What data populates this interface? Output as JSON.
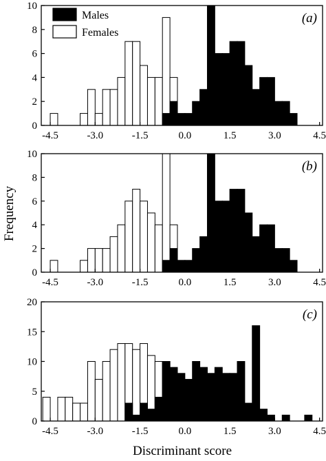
{
  "chart_data": {
    "type": "bar",
    "bin_width": 0.25,
    "x_ticks": [
      "-4.5",
      "-3.0",
      "-1.5",
      "0.0",
      "1.5",
      "3.0",
      "4.5"
    ],
    "xlabel": "Discriminant score",
    "ylabel": "Frequency",
    "legend": {
      "position": "top-left",
      "entries": [
        {
          "name": "Males",
          "fill": "#000000"
        },
        {
          "name": "Females",
          "fill": "#ffffff"
        }
      ]
    },
    "colors": {
      "males": "#000000",
      "females": "#ffffff",
      "edge": "#000000"
    },
    "panels": [
      {
        "label": "(a)",
        "ylim": [
          0,
          10
        ],
        "y_ticks": [
          "0",
          "2",
          "4",
          "6",
          "8",
          "10"
        ],
        "females": [
          {
            "x": -4.375,
            "y": 1
          },
          {
            "x": -3.375,
            "y": 1
          },
          {
            "x": -3.125,
            "y": 3
          },
          {
            "x": -2.875,
            "y": 1
          },
          {
            "x": -2.625,
            "y": 3
          },
          {
            "x": -2.375,
            "y": 3
          },
          {
            "x": -2.125,
            "y": 4
          },
          {
            "x": -1.875,
            "y": 7
          },
          {
            "x": -1.625,
            "y": 7
          },
          {
            "x": -1.375,
            "y": 5
          },
          {
            "x": -1.125,
            "y": 4
          },
          {
            "x": -0.875,
            "y": 4
          },
          {
            "x": -0.625,
            "y": 9
          },
          {
            "x": -0.375,
            "y": 4
          },
          {
            "x": 0.625,
            "y": 1
          }
        ],
        "males": [
          {
            "x": -0.625,
            "y": 1
          },
          {
            "x": -0.375,
            "y": 2
          },
          {
            "x": -0.125,
            "y": 1
          },
          {
            "x": 0.125,
            "y": 1
          },
          {
            "x": 0.375,
            "y": 2
          },
          {
            "x": 0.625,
            "y": 3
          },
          {
            "x": 0.875,
            "y": 10
          },
          {
            "x": 1.125,
            "y": 6
          },
          {
            "x": 1.375,
            "y": 6
          },
          {
            "x": 1.625,
            "y": 7
          },
          {
            "x": 1.875,
            "y": 7
          },
          {
            "x": 2.125,
            "y": 5
          },
          {
            "x": 2.375,
            "y": 3
          },
          {
            "x": 2.625,
            "y": 4
          },
          {
            "x": 2.875,
            "y": 4
          },
          {
            "x": 3.125,
            "y": 2
          },
          {
            "x": 3.375,
            "y": 2
          },
          {
            "x": 3.625,
            "y": 1
          }
        ]
      },
      {
        "label": "(b)",
        "ylim": [
          0,
          10
        ],
        "y_ticks": [
          "0",
          "2",
          "4",
          "6",
          "8",
          "10"
        ],
        "females": [
          {
            "x": -4.375,
            "y": 1
          },
          {
            "x": -3.375,
            "y": 1
          },
          {
            "x": -3.125,
            "y": 2
          },
          {
            "x": -2.875,
            "y": 2
          },
          {
            "x": -2.625,
            "y": 2
          },
          {
            "x": -2.375,
            "y": 3
          },
          {
            "x": -2.125,
            "y": 4
          },
          {
            "x": -1.875,
            "y": 6
          },
          {
            "x": -1.625,
            "y": 7
          },
          {
            "x": -1.375,
            "y": 6
          },
          {
            "x": -1.125,
            "y": 5
          },
          {
            "x": -0.875,
            "y": 4
          },
          {
            "x": -0.625,
            "y": 10
          },
          {
            "x": -0.375,
            "y": 4
          },
          {
            "x": 0.625,
            "y": 1
          }
        ],
        "males": [
          {
            "x": -0.625,
            "y": 1
          },
          {
            "x": -0.375,
            "y": 2
          },
          {
            "x": -0.125,
            "y": 1
          },
          {
            "x": 0.125,
            "y": 1
          },
          {
            "x": 0.375,
            "y": 2
          },
          {
            "x": 0.625,
            "y": 3
          },
          {
            "x": 0.875,
            "y": 10
          },
          {
            "x": 1.125,
            "y": 6
          },
          {
            "x": 1.375,
            "y": 6
          },
          {
            "x": 1.625,
            "y": 7
          },
          {
            "x": 1.875,
            "y": 7
          },
          {
            "x": 2.125,
            "y": 5
          },
          {
            "x": 2.375,
            "y": 3
          },
          {
            "x": 2.625,
            "y": 4
          },
          {
            "x": 2.875,
            "y": 4
          },
          {
            "x": 3.125,
            "y": 2
          },
          {
            "x": 3.375,
            "y": 2
          },
          {
            "x": 3.625,
            "y": 1
          }
        ]
      },
      {
        "label": "(c)",
        "ylim": [
          0,
          20
        ],
        "y_ticks": [
          "0",
          "5",
          "10",
          "15",
          "20"
        ],
        "females": [
          {
            "x": -4.625,
            "y": 4
          },
          {
            "x": -4.125,
            "y": 4
          },
          {
            "x": -3.875,
            "y": 4
          },
          {
            "x": -3.625,
            "y": 3
          },
          {
            "x": -3.375,
            "y": 3
          },
          {
            "x": -3.125,
            "y": 10
          },
          {
            "x": -2.875,
            "y": 7
          },
          {
            "x": -2.625,
            "y": 10
          },
          {
            "x": -2.375,
            "y": 12
          },
          {
            "x": -2.125,
            "y": 13
          },
          {
            "x": -1.875,
            "y": 13
          },
          {
            "x": -1.625,
            "y": 12
          },
          {
            "x": -1.375,
            "y": 13
          },
          {
            "x": -1.125,
            "y": 11
          },
          {
            "x": -0.875,
            "y": 10
          },
          {
            "x": -0.625,
            "y": 10
          },
          {
            "x": 0.375,
            "y": 2
          },
          {
            "x": 1.875,
            "y": 1
          }
        ],
        "males": [
          {
            "x": -1.875,
            "y": 3
          },
          {
            "x": -1.625,
            "y": 1
          },
          {
            "x": -1.375,
            "y": 3
          },
          {
            "x": -1.125,
            "y": 2
          },
          {
            "x": -0.875,
            "y": 4
          },
          {
            "x": -0.625,
            "y": 10
          },
          {
            "x": -0.375,
            "y": 9
          },
          {
            "x": -0.125,
            "y": 8
          },
          {
            "x": 0.125,
            "y": 7
          },
          {
            "x": 0.375,
            "y": 10
          },
          {
            "x": 0.625,
            "y": 9
          },
          {
            "x": 0.875,
            "y": 8
          },
          {
            "x": 1.125,
            "y": 9
          },
          {
            "x": 1.375,
            "y": 8
          },
          {
            "x": 1.625,
            "y": 8
          },
          {
            "x": 1.875,
            "y": 10
          },
          {
            "x": 2.125,
            "y": 3
          },
          {
            "x": 2.375,
            "y": 16
          },
          {
            "x": 2.625,
            "y": 2
          },
          {
            "x": 2.875,
            "y": 1
          },
          {
            "x": 3.375,
            "y": 1
          },
          {
            "x": 4.125,
            "y": 1
          }
        ]
      }
    ]
  }
}
